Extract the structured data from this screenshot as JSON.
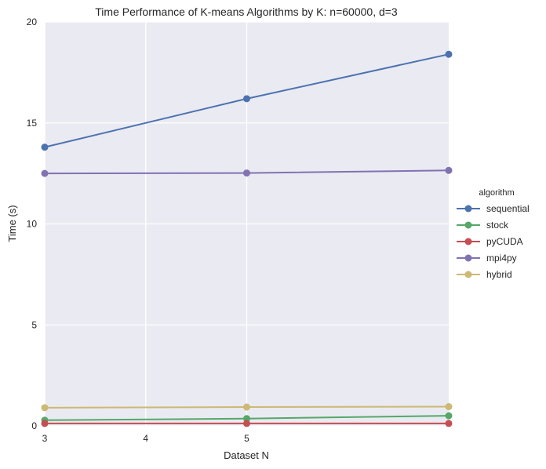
{
  "chart_data": {
    "type": "line",
    "title": "Time Performance of K-means Algorithms by K: n=60000, d=3",
    "xlabel": "Dataset N",
    "ylabel": "Time (s)",
    "x": [
      3,
      5,
      7
    ],
    "xlim": [
      3,
      7
    ],
    "xticks": [
      3,
      4,
      5
    ],
    "ylim": [
      0,
      20
    ],
    "yticks": [
      0,
      5,
      10,
      15,
      20
    ],
    "grid": true,
    "legend_title": "algorithm",
    "legend_position": "right",
    "series": [
      {
        "name": "sequential",
        "color": "#4c72b0",
        "values": [
          13.8,
          16.2,
          18.4
        ]
      },
      {
        "name": "stock",
        "color": "#55a868",
        "values": [
          0.28,
          0.36,
          0.5
        ]
      },
      {
        "name": "pyCUDA",
        "color": "#c44e52",
        "values": [
          0.12,
          0.12,
          0.12
        ]
      },
      {
        "name": "mpi4py",
        "color": "#8172b2",
        "values": [
          12.5,
          12.52,
          12.65
        ]
      },
      {
        "name": "hybrid",
        "color": "#ccb974",
        "values": [
          0.9,
          0.93,
          0.95
        ]
      }
    ]
  }
}
